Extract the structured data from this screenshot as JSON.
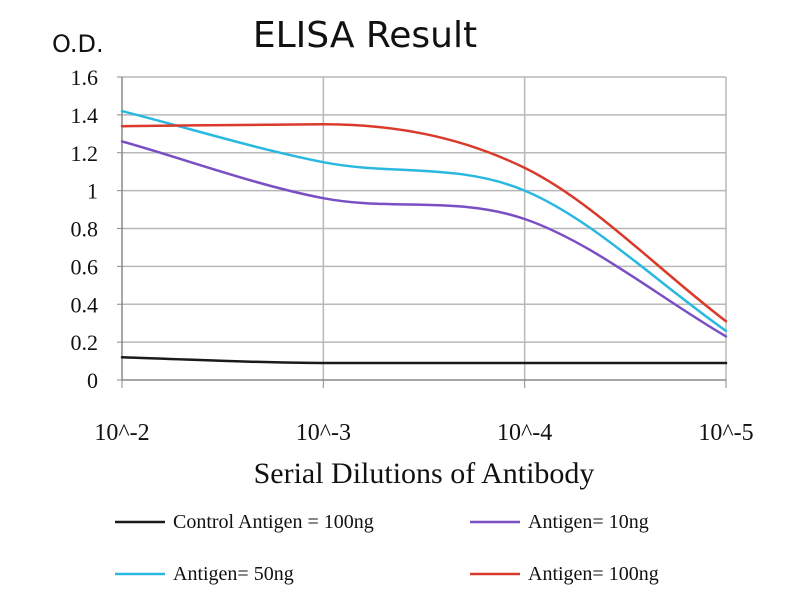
{
  "chart_data": {
    "type": "line",
    "title": "ELISA Result",
    "ylabel": "O.D.",
    "xlabel": "Serial Dilutions of Antibody",
    "categories": [
      "10^-2",
      "10^-3",
      "10^-4",
      "10^-5"
    ],
    "yticks": [
      "0",
      "0.2",
      "0.4",
      "0.6",
      "0.8",
      "1",
      "1.2",
      "1.4",
      "1.6"
    ],
    "ylim": [
      0,
      1.6
    ],
    "grid": true,
    "legend_position": "bottom",
    "series": [
      {
        "name": "Control Antigen = 100ng",
        "color": "#1a1a1a",
        "values": [
          0.12,
          0.09,
          0.09,
          0.09
        ]
      },
      {
        "name": "Antigen= 10ng",
        "color": "#7b4fc4",
        "values": [
          1.26,
          0.96,
          0.85,
          0.23
        ]
      },
      {
        "name": "Antigen= 50ng",
        "color": "#2bb8e0",
        "values": [
          1.42,
          1.15,
          1.0,
          0.26
        ]
      },
      {
        "name": "Antigen= 100ng",
        "color": "#d93a2b",
        "values": [
          1.34,
          1.35,
          1.12,
          0.31
        ]
      }
    ]
  }
}
